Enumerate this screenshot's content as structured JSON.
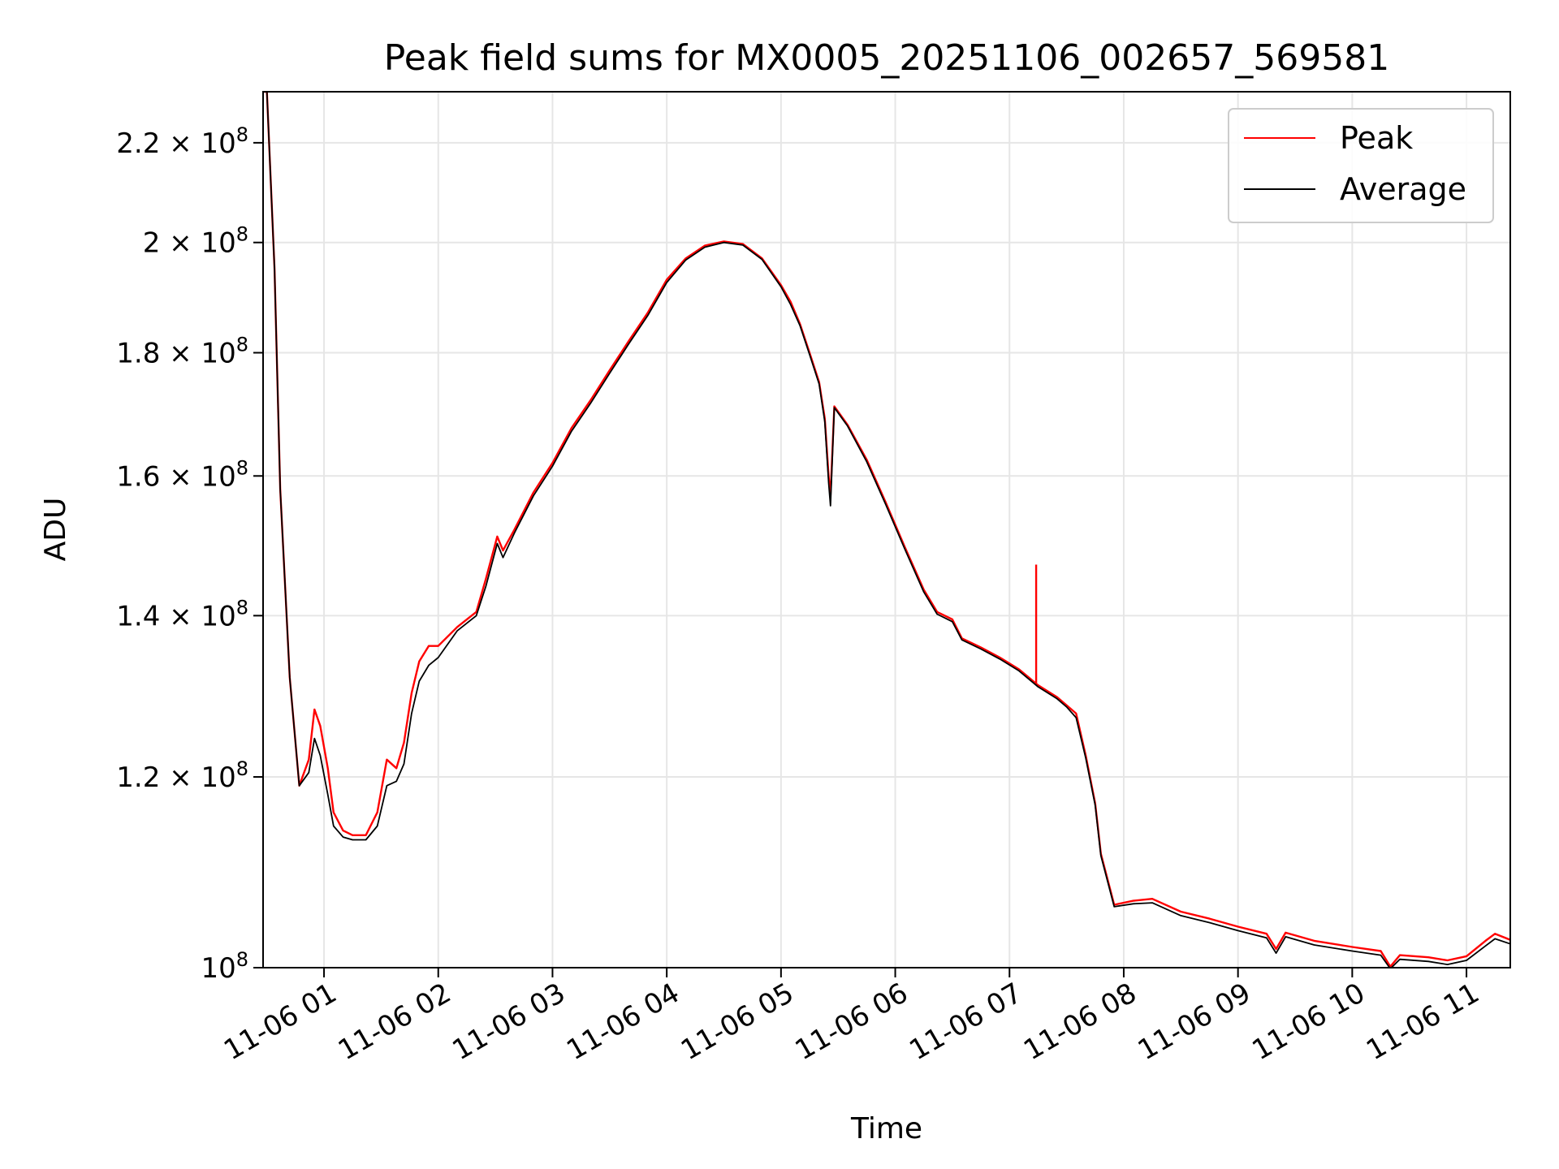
{
  "chart_data": {
    "type": "line",
    "title": "Peak field sums for MX0005_20251106_002657_569581",
    "xlabel": "Time",
    "ylabel": "ADU",
    "x_scale": "time",
    "y_scale": "log",
    "xlim": [
      "2025-11-06 00:28",
      "2025-11-06 11:23"
    ],
    "ylim": [
      100000000,
      231000000
    ],
    "grid": true,
    "legend_position": "upper right",
    "x_ticks": [
      {
        "value": "2025-11-06 01:00",
        "label": "11-06 01"
      },
      {
        "value": "2025-11-06 02:00",
        "label": "11-06 02"
      },
      {
        "value": "2025-11-06 03:00",
        "label": "11-06 03"
      },
      {
        "value": "2025-11-06 04:00",
        "label": "11-06 04"
      },
      {
        "value": "2025-11-06 05:00",
        "label": "11-06 05"
      },
      {
        "value": "2025-11-06 06:00",
        "label": "11-06 06"
      },
      {
        "value": "2025-11-06 07:00",
        "label": "11-06 07"
      },
      {
        "value": "2025-11-06 08:00",
        "label": "11-06 08"
      },
      {
        "value": "2025-11-06 09:00",
        "label": "11-06 09"
      },
      {
        "value": "2025-11-06 10:00",
        "label": "11-06 10"
      },
      {
        "value": "2025-11-06 11:00",
        "label": "11-06 11"
      }
    ],
    "y_ticks": [
      {
        "value": 100000000,
        "mantissa": "",
        "exponent": "8"
      },
      {
        "value": 120000000,
        "mantissa": "1.2",
        "exponent": "8"
      },
      {
        "value": 140000000,
        "mantissa": "1.4",
        "exponent": "8"
      },
      {
        "value": 160000000,
        "mantissa": "1.6",
        "exponent": "8"
      },
      {
        "value": 180000000,
        "mantissa": "1.8",
        "exponent": "8"
      },
      {
        "value": 200000000,
        "mantissa": "2",
        "exponent": "8"
      },
      {
        "value": 220000000,
        "mantissa": "2.2",
        "exponent": "8"
      }
    ],
    "series": [
      {
        "name": "Peak",
        "color": "#ff0000",
        "points": [
          [
            "2025-11-06 00:28",
            231000000
          ],
          [
            "2025-11-06 00:30",
            231000000
          ],
          [
            "2025-11-06 00:34",
            195000000
          ],
          [
            "2025-11-06 00:37",
            158000000
          ],
          [
            "2025-11-06 00:42",
            132000000
          ],
          [
            "2025-11-06 00:47",
            119000000
          ],
          [
            "2025-11-06 00:52",
            122000000
          ],
          [
            "2025-11-06 00:55",
            128000000
          ],
          [
            "2025-11-06 00:58",
            126000000
          ],
          [
            "2025-11-06 01:02",
            121000000
          ],
          [
            "2025-11-06 01:05",
            116000000
          ],
          [
            "2025-11-06 01:10",
            114000000
          ],
          [
            "2025-11-06 01:15",
            113500000
          ],
          [
            "2025-11-06 01:22",
            113500000
          ],
          [
            "2025-11-06 01:28",
            116000000
          ],
          [
            "2025-11-06 01:33",
            122000000
          ],
          [
            "2025-11-06 01:38",
            121000000
          ],
          [
            "2025-11-06 01:42",
            124000000
          ],
          [
            "2025-11-06 01:46",
            130000000
          ],
          [
            "2025-11-06 01:50",
            134000000
          ],
          [
            "2025-11-06 01:55",
            136000000
          ],
          [
            "2025-11-06 02:00",
            136000000
          ],
          [
            "2025-11-06 02:10",
            138500000
          ],
          [
            "2025-11-06 02:20",
            140500000
          ],
          [
            "2025-11-06 02:25",
            145000000
          ],
          [
            "2025-11-06 02:31",
            151000000
          ],
          [
            "2025-11-06 02:34",
            149000000
          ],
          [
            "2025-11-06 02:40",
            152000000
          ],
          [
            "2025-11-06 02:50",
            157500000
          ],
          [
            "2025-11-06 03:00",
            162000000
          ],
          [
            "2025-11-06 03:10",
            167500000
          ],
          [
            "2025-11-06 03:20",
            172000000
          ],
          [
            "2025-11-06 03:30",
            177000000
          ],
          [
            "2025-11-06 03:40",
            182000000
          ],
          [
            "2025-11-06 03:50",
            187000000
          ],
          [
            "2025-11-06 04:00",
            193000000
          ],
          [
            "2025-11-06 04:10",
            197000000
          ],
          [
            "2025-11-06 04:20",
            199400000
          ],
          [
            "2025-11-06 04:30",
            200200000
          ],
          [
            "2025-11-06 04:40",
            199700000
          ],
          [
            "2025-11-06 04:50",
            197000000
          ],
          [
            "2025-11-06 05:00",
            192000000
          ],
          [
            "2025-11-06 05:05",
            189000000
          ],
          [
            "2025-11-06 05:10",
            185000000
          ],
          [
            "2025-11-06 05:15",
            180000000
          ],
          [
            "2025-11-06 05:20",
            175000000
          ],
          [
            "2025-11-06 05:23",
            169000000
          ],
          [
            "2025-11-06 05:25",
            160000000
          ],
          [
            "2025-11-06 05:26",
            157000000
          ],
          [
            "2025-11-06 05:28",
            171000000
          ],
          [
            "2025-11-06 05:35",
            168000000
          ],
          [
            "2025-11-06 05:45",
            162500000
          ],
          [
            "2025-11-06 05:55",
            156000000
          ],
          [
            "2025-11-06 06:05",
            149500000
          ],
          [
            "2025-11-06 06:15",
            143500000
          ],
          [
            "2025-11-06 06:22",
            140500000
          ],
          [
            "2025-11-06 06:30",
            139500000
          ],
          [
            "2025-11-06 06:35",
            137000000
          ],
          [
            "2025-11-06 06:45",
            135800000
          ],
          [
            "2025-11-06 06:55",
            134500000
          ],
          [
            "2025-11-06 07:05",
            133000000
          ],
          [
            "2025-11-06 07:15",
            131000000
          ],
          [
            "2025-11-06 07:25",
            129500000
          ],
          [
            "2025-11-06 07:30",
            128500000
          ],
          [
            "2025-11-06 07:35",
            127500000
          ],
          [
            "2025-11-06 07:40",
            122500000
          ],
          [
            "2025-11-06 07:45",
            117000000
          ],
          [
            "2025-11-06 07:48",
            111500000
          ],
          [
            "2025-11-06 07:55",
            106200000
          ],
          [
            "2025-11-06 08:05",
            106600000
          ],
          [
            "2025-11-06 08:15",
            106800000
          ],
          [
            "2025-11-06 08:30",
            105500000
          ],
          [
            "2025-11-06 08:45",
            104800000
          ],
          [
            "2025-11-06 09:00",
            104000000
          ],
          [
            "2025-11-06 09:15",
            103300000
          ],
          [
            "2025-11-06 09:20",
            101800000
          ],
          [
            "2025-11-06 09:25",
            103400000
          ],
          [
            "2025-11-06 09:40",
            102600000
          ],
          [
            "2025-11-06 10:00",
            102000000
          ],
          [
            "2025-11-06 10:15",
            101600000
          ],
          [
            "2025-11-06 10:20",
            100100000
          ],
          [
            "2025-11-06 10:25",
            101200000
          ],
          [
            "2025-11-06 10:40",
            101000000
          ],
          [
            "2025-11-06 10:50",
            100700000
          ],
          [
            "2025-11-06 11:00",
            101100000
          ],
          [
            "2025-11-06 11:10",
            102600000
          ],
          [
            "2025-11-06 11:15",
            103300000
          ],
          [
            "2025-11-06 11:23",
            102700000
          ]
        ],
        "spikes": [
          [
            "2025-11-06 07:14",
            147000000
          ]
        ]
      },
      {
        "name": "Average",
        "color": "#000000",
        "points": [
          [
            "2025-11-06 00:28",
            231000000
          ],
          [
            "2025-11-06 00:30",
            231000000
          ],
          [
            "2025-11-06 00:34",
            195000000
          ],
          [
            "2025-11-06 00:37",
            158000000
          ],
          [
            "2025-11-06 00:42",
            132000000
          ],
          [
            "2025-11-06 00:47",
            119000000
          ],
          [
            "2025-11-06 00:52",
            120500000
          ],
          [
            "2025-11-06 00:55",
            124500000
          ],
          [
            "2025-11-06 00:58",
            122500000
          ],
          [
            "2025-11-06 01:02",
            118000000
          ],
          [
            "2025-11-06 01:05",
            114500000
          ],
          [
            "2025-11-06 01:10",
            113300000
          ],
          [
            "2025-11-06 01:15",
            113000000
          ],
          [
            "2025-11-06 01:22",
            113000000
          ],
          [
            "2025-11-06 01:28",
            114500000
          ],
          [
            "2025-11-06 01:33",
            119000000
          ],
          [
            "2025-11-06 01:38",
            119500000
          ],
          [
            "2025-11-06 01:42",
            121500000
          ],
          [
            "2025-11-06 01:46",
            127500000
          ],
          [
            "2025-11-06 01:50",
            131500000
          ],
          [
            "2025-11-06 01:55",
            133500000
          ],
          [
            "2025-11-06 02:00",
            134500000
          ],
          [
            "2025-11-06 02:10",
            138000000
          ],
          [
            "2025-11-06 02:20",
            140000000
          ],
          [
            "2025-11-06 02:25",
            144000000
          ],
          [
            "2025-11-06 02:31",
            150000000
          ],
          [
            "2025-11-06 02:34",
            148000000
          ],
          [
            "2025-11-06 02:40",
            151500000
          ],
          [
            "2025-11-06 02:50",
            157000000
          ],
          [
            "2025-11-06 03:00",
            161500000
          ],
          [
            "2025-11-06 03:10",
            167000000
          ],
          [
            "2025-11-06 03:20",
            171500000
          ],
          [
            "2025-11-06 03:30",
            176500000
          ],
          [
            "2025-11-06 03:40",
            181500000
          ],
          [
            "2025-11-06 03:50",
            186500000
          ],
          [
            "2025-11-06 04:00",
            192500000
          ],
          [
            "2025-11-06 04:10",
            196700000
          ],
          [
            "2025-11-06 04:20",
            199100000
          ],
          [
            "2025-11-06 04:30",
            200000000
          ],
          [
            "2025-11-06 04:40",
            199500000
          ],
          [
            "2025-11-06 04:50",
            196800000
          ],
          [
            "2025-11-06 05:00",
            191700000
          ],
          [
            "2025-11-06 05:05",
            188500000
          ],
          [
            "2025-11-06 05:10",
            184700000
          ],
          [
            "2025-11-06 05:15",
            179700000
          ],
          [
            "2025-11-06 05:20",
            174700000
          ],
          [
            "2025-11-06 05:23",
            168500000
          ],
          [
            "2025-11-06 05:25",
            159000000
          ],
          [
            "2025-11-06 05:26",
            155500000
          ],
          [
            "2025-11-06 05:28",
            170800000
          ],
          [
            "2025-11-06 05:35",
            167800000
          ],
          [
            "2025-11-06 05:45",
            162200000
          ],
          [
            "2025-11-06 05:55",
            155700000
          ],
          [
            "2025-11-06 06:05",
            149200000
          ],
          [
            "2025-11-06 06:15",
            143200000
          ],
          [
            "2025-11-06 06:22",
            140200000
          ],
          [
            "2025-11-06 06:30",
            139200000
          ],
          [
            "2025-11-06 06:35",
            136800000
          ],
          [
            "2025-11-06 06:45",
            135600000
          ],
          [
            "2025-11-06 06:55",
            134300000
          ],
          [
            "2025-11-06 07:05",
            132800000
          ],
          [
            "2025-11-06 07:15",
            130800000
          ],
          [
            "2025-11-06 07:25",
            129300000
          ],
          [
            "2025-11-06 07:30",
            128300000
          ],
          [
            "2025-11-06 07:35",
            127000000
          ],
          [
            "2025-11-06 07:40",
            122200000
          ],
          [
            "2025-11-06 07:45",
            116800000
          ],
          [
            "2025-11-06 07:48",
            111300000
          ],
          [
            "2025-11-06 07:55",
            106000000
          ],
          [
            "2025-11-06 08:05",
            106300000
          ],
          [
            "2025-11-06 08:15",
            106400000
          ],
          [
            "2025-11-06 08:30",
            105100000
          ],
          [
            "2025-11-06 08:45",
            104400000
          ],
          [
            "2025-11-06 09:00",
            103600000
          ],
          [
            "2025-11-06 09:15",
            102900000
          ],
          [
            "2025-11-06 09:20",
            101400000
          ],
          [
            "2025-11-06 09:25",
            103000000
          ],
          [
            "2025-11-06 09:40",
            102200000
          ],
          [
            "2025-11-06 10:00",
            101600000
          ],
          [
            "2025-11-06 10:15",
            101200000
          ],
          [
            "2025-11-06 10:20",
            99900000
          ],
          [
            "2025-11-06 10:25",
            100800000
          ],
          [
            "2025-11-06 10:40",
            100600000
          ],
          [
            "2025-11-06 10:50",
            100300000
          ],
          [
            "2025-11-06 11:00",
            100700000
          ],
          [
            "2025-11-06 11:10",
            102100000
          ],
          [
            "2025-11-06 11:15",
            102800000
          ],
          [
            "2025-11-06 11:23",
            102300000
          ]
        ]
      }
    ]
  }
}
